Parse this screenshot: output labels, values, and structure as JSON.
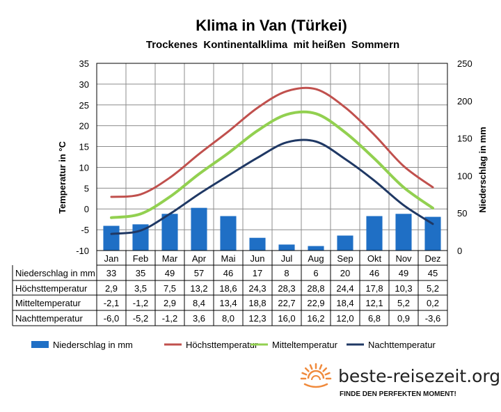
{
  "colors": {
    "precip": "#1f6fc5",
    "max": "#c0504d",
    "mean": "#92d050",
    "min": "#1f3864",
    "sun": "#f08a3c"
  },
  "chart_data": {
    "type": "bar+line",
    "title": "Klima in Van (Türkei)",
    "subtitle": "Trockenes  Kontinentalklima  mit heißen  Sommern",
    "ylabel_left": "Temperatur in °C",
    "ylabel_right": "Niederschlag in mm",
    "ylim_left": [
      -10,
      35
    ],
    "ylim_right": [
      0,
      250
    ],
    "yticks_left": [
      "35",
      "30",
      "25",
      "20",
      "15",
      "10",
      "5",
      "0",
      "-5",
      "-10"
    ],
    "yticks_right": [
      "250",
      "200",
      "150",
      "100",
      "50",
      "0"
    ],
    "grid": true,
    "legend_position": "bottom",
    "categories": [
      "Jan",
      "Feb",
      "Mar",
      "Apr",
      "Mai",
      "Jun",
      "Jul",
      "Aug",
      "Sep",
      "Okt",
      "Nov",
      "Dez"
    ],
    "series": [
      {
        "key": "precip",
        "name": "Niederschlag in mm",
        "type": "bar",
        "axis": "right",
        "values": [
          33,
          35,
          49,
          57,
          46,
          17,
          8,
          6,
          20,
          46,
          49,
          45
        ],
        "labels": [
          "33",
          "35",
          "49",
          "57",
          "46",
          "17",
          "8",
          "6",
          "20",
          "46",
          "49",
          "45"
        ]
      },
      {
        "key": "max",
        "name": "Höchsttemperatur",
        "type": "line",
        "axis": "left",
        "values": [
          2.9,
          3.5,
          7.5,
          13.2,
          18.6,
          24.3,
          28.3,
          28.8,
          24.4,
          17.8,
          10.3,
          5.2
        ],
        "labels": [
          "2,9",
          "3,5",
          "7,5",
          "13,2",
          "18,6",
          "24,3",
          "28,3",
          "28,8",
          "24,4",
          "17,8",
          "10,3",
          "5,2"
        ]
      },
      {
        "key": "mean",
        "name": "Mitteltemperatur",
        "type": "line",
        "axis": "left",
        "values": [
          -2.1,
          -1.2,
          2.9,
          8.4,
          13.4,
          18.8,
          22.7,
          22.9,
          18.4,
          12.1,
          5.2,
          0.2
        ],
        "labels": [
          "-2,1",
          "-1,2",
          "2,9",
          "8,4",
          "13,4",
          "18,8",
          "22,7",
          "22,9",
          "18,4",
          "12,1",
          "5,2",
          "0,2"
        ]
      },
      {
        "key": "min",
        "name": "Nachttemperatur",
        "type": "line",
        "axis": "left",
        "values": [
          -6.0,
          -5.2,
          -1.2,
          3.6,
          8.0,
          12.3,
          16.0,
          16.2,
          12.0,
          6.8,
          0.9,
          -3.6
        ],
        "labels": [
          "-6,0",
          "-5,2",
          "-1,2",
          "3,6",
          "8,0",
          "12,3",
          "16,0",
          "16,2",
          "12,0",
          "6,8",
          "0,9",
          "-3,6"
        ]
      }
    ]
  },
  "brand": {
    "logo_icon": "sun-icon",
    "name": "beste-reisezeit.org",
    "slogan": "FINDE DEN PERFEKTEN MOMENT!"
  }
}
